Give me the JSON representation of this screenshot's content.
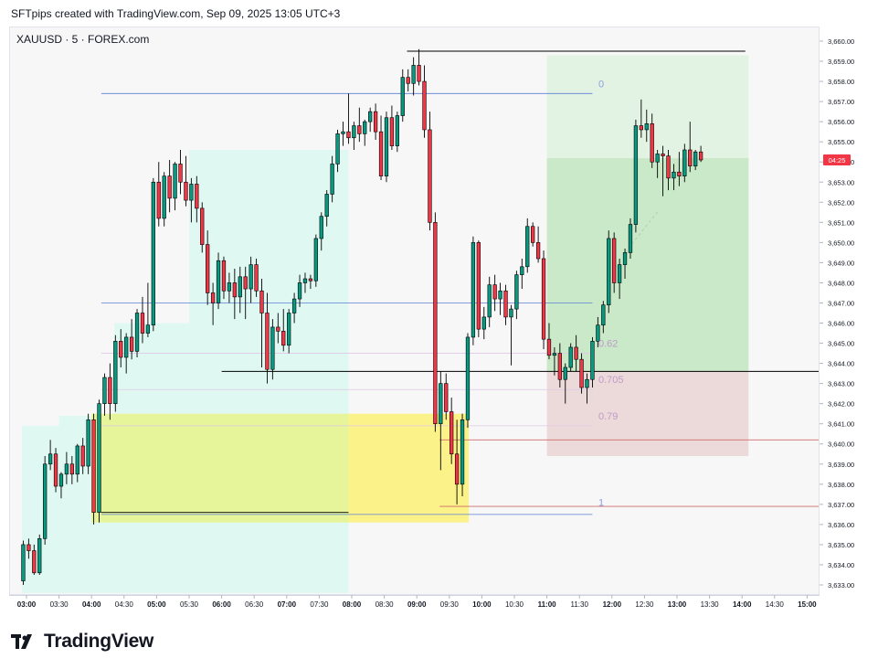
{
  "header": {
    "note": "SFTpips created with TradingView.com, Sep 09, 2025 13:05 UTC+3"
  },
  "chart_header": {
    "symbol": "XAUUSD · 5 · FOREX.com"
  },
  "brand": {
    "name": "TradingView",
    "logo_icon": "tradingview-logo-icon"
  },
  "colors": {
    "up": "#089981",
    "down": "#f23645",
    "zone_cyan": "#dff8f2",
    "zone_yellow": "#fbf28a",
    "zone_green": "#c9e9c9",
    "zone_green_light": "#e3f3e3",
    "zone_red": "#ecdada",
    "fib_blue": "#5b7fd6",
    "fib_label": "#8c9fe0",
    "fib_purple_label": "#c09bc9",
    "level_red": "#d26b6b",
    "black": "#000000",
    "price_tag": "#f23645"
  },
  "chart_data": {
    "type": "candlestick",
    "title": "",
    "xlabel": "",
    "ylabel": "",
    "ylim": [
      3632.6,
      3660.4
    ],
    "xlim_hours": [
      2.9,
      15.2
    ],
    "y_ticks": [
      "3,633.00",
      "3,634.00",
      "3,635.00",
      "3,636.00",
      "3,637.00",
      "3,638.00",
      "3,639.00",
      "3,640.00",
      "3,641.00",
      "3,642.00",
      "3,643.00",
      "3,644.00",
      "3,645.00",
      "3,646.00",
      "3,647.00",
      "3,648.00",
      "3,649.00",
      "3,650.00",
      "3,651.00",
      "3,652.00",
      "3,653.00",
      "3,654.00",
      "3,655.00",
      "3,656.00",
      "3,657.00",
      "3,658.00",
      "3,659.00",
      "3,660.00"
    ],
    "x_ticks": [
      {
        "label": "03:00",
        "h": 3.0,
        "bold": true
      },
      {
        "label": "03:30",
        "h": 3.5,
        "bold": false
      },
      {
        "label": "04:00",
        "h": 4.0,
        "bold": true
      },
      {
        "label": "04:30",
        "h": 4.5,
        "bold": false
      },
      {
        "label": "05:00",
        "h": 5.0,
        "bold": true
      },
      {
        "label": "05:30",
        "h": 5.5,
        "bold": false
      },
      {
        "label": "06:00",
        "h": 6.0,
        "bold": true
      },
      {
        "label": "06:30",
        "h": 6.5,
        "bold": false
      },
      {
        "label": "07:00",
        "h": 7.0,
        "bold": true
      },
      {
        "label": "07:30",
        "h": 7.5,
        "bold": false
      },
      {
        "label": "08:00",
        "h": 8.0,
        "bold": true
      },
      {
        "label": "08:30",
        "h": 8.5,
        "bold": false
      },
      {
        "label": "09:00",
        "h": 9.0,
        "bold": true
      },
      {
        "label": "09:30",
        "h": 9.5,
        "bold": false
      },
      {
        "label": "10:00",
        "h": 10.0,
        "bold": true
      },
      {
        "label": "10:30",
        "h": 10.5,
        "bold": false
      },
      {
        "label": "11:00",
        "h": 11.0,
        "bold": true
      },
      {
        "label": "11:30",
        "h": 11.5,
        "bold": false
      },
      {
        "label": "12:00",
        "h": 12.0,
        "bold": true
      },
      {
        "label": "12:30",
        "h": 12.5,
        "bold": false
      },
      {
        "label": "13:00",
        "h": 13.0,
        "bold": true
      },
      {
        "label": "13:30",
        "h": 13.5,
        "bold": false
      },
      {
        "label": "14:00",
        "h": 14.0,
        "bold": true
      },
      {
        "label": "14:30",
        "h": 14.5,
        "bold": false
      },
      {
        "label": "15:00",
        "h": 15.0,
        "bold": true
      }
    ],
    "current_price": {
      "label": "04:25",
      "price": 3654.1
    },
    "zones": [
      {
        "name": "cyan-zone-left",
        "x0": 2.93,
        "x1": 3.5,
        "y0": 3632.6,
        "y1": 3640.9,
        "color": "#dff8f2"
      },
      {
        "name": "cyan-zone-mid",
        "x0": 3.5,
        "x1": 4.35,
        "y0": 3632.6,
        "y1": 3641.4,
        "color": "#dff8f2"
      },
      {
        "name": "cyan-zone-upper",
        "x0": 4.35,
        "x1": 5.5,
        "y0": 3632.6,
        "y1": 3646.0,
        "color": "#dff8f2"
      },
      {
        "name": "cyan-zone-top",
        "x0": 5.5,
        "x1": 7.95,
        "y0": 3632.6,
        "y1": 3654.6,
        "color": "#dff8f2"
      },
      {
        "name": "yellow-zone-left",
        "x0": 4.0,
        "x1": 7.95,
        "y0": 3636.1,
        "y1": 3641.5,
        "color": "#e6f49a"
      },
      {
        "name": "yellow-zone-right",
        "x0": 7.95,
        "x1": 9.8,
        "y0": 3636.1,
        "y1": 3641.5,
        "color": "#fbf28a"
      },
      {
        "name": "green-target-zone",
        "x0": 11.0,
        "x1": 14.1,
        "y0": 3643.6,
        "y1": 3654.2,
        "color": "#c9e9c9"
      },
      {
        "name": "green-target-zone-upper",
        "x0": 11.0,
        "x1": 14.1,
        "y0": 3654.2,
        "y1": 3659.3,
        "color": "#e3f3e3"
      },
      {
        "name": "red-stop-zone",
        "x0": 11.0,
        "x1": 14.1,
        "y0": 3639.4,
        "y1": 3643.6,
        "color": "#ecdada"
      }
    ],
    "lines": [
      {
        "name": "fib-0-line",
        "x0": 4.15,
        "x1": 11.7,
        "y": 3657.4,
        "color": "#5b7fd6",
        "width": 0.8
      },
      {
        "name": "fib-05-line",
        "x0": 4.15,
        "x1": 11.7,
        "y": 3647.0,
        "color": "#5b7fd6",
        "width": 0.8
      },
      {
        "name": "fib-062-line",
        "x0": 4.15,
        "x1": 11.7,
        "y": 3644.5,
        "color": "#e0c8e6",
        "width": 0.8
      },
      {
        "name": "fib-0705-line",
        "x0": 4.15,
        "x1": 11.7,
        "y": 3642.7,
        "color": "#e0c8e6",
        "width": 0.8
      },
      {
        "name": "fib-079-line",
        "x0": 4.15,
        "x1": 11.7,
        "y": 3640.9,
        "color": "#e0c8e6",
        "width": 0.8
      },
      {
        "name": "fib-1-line",
        "x0": 4.15,
        "x1": 11.7,
        "y": 3636.5,
        "color": "#5b7fd6",
        "width": 0.8
      },
      {
        "name": "swing-high-line",
        "x0": 8.85,
        "x1": 14.05,
        "y": 3659.5,
        "color": "#000000",
        "width": 1
      },
      {
        "name": "support-line",
        "x0": 6.0,
        "x1": 15.2,
        "y": 3643.6,
        "color": "#000000",
        "width": 1
      },
      {
        "name": "red-level-upper",
        "x0": 9.35,
        "x1": 15.2,
        "y": 3640.2,
        "color": "#d26b6b",
        "width": 0.8
      },
      {
        "name": "red-level-lower",
        "x0": 9.35,
        "x1": 15.2,
        "y": 3636.9,
        "color": "#d26b6b",
        "width": 0.8
      },
      {
        "name": "lower-black-line",
        "x0": 4.15,
        "x1": 7.95,
        "y": 3636.6,
        "color": "#000000",
        "width": 0.8
      }
    ],
    "fib_labels": [
      {
        "text": "0",
        "y": 3657.9,
        "color": "#8c9fe0"
      },
      {
        "text": "0.62",
        "y": 3645.0,
        "color": "#c09bc9"
      },
      {
        "text": "0.705",
        "y": 3643.2,
        "color": "#c09bc9"
      },
      {
        "text": "0.79",
        "y": 3641.4,
        "color": "#c09bc9"
      },
      {
        "text": "1",
        "y": 3637.1,
        "color": "#8c9fe0"
      }
    ],
    "projection": {
      "x0": 12.2,
      "y0": 3649.5,
      "x1": 12.72,
      "y1": 3651.6
    },
    "candles": {
      "start_hour": 2.95,
      "step_hours": 0.0833333,
      "ohlc": [
        [
          3633.2,
          3635.2,
          3633.0,
          3635.0
        ],
        [
          3635.0,
          3635.3,
          3634.3,
          3634.7
        ],
        [
          3634.7,
          3635.0,
          3633.5,
          3633.6
        ],
        [
          3633.6,
          3635.5,
          3633.5,
          3635.3
        ],
        [
          3635.3,
          3639.4,
          3635.0,
          3639.0
        ],
        [
          3639.0,
          3640.2,
          3638.7,
          3639.5
        ],
        [
          3639.5,
          3639.8,
          3637.6,
          3637.9
        ],
        [
          3637.9,
          3638.6,
          3637.3,
          3638.5
        ],
        [
          3638.5,
          3639.6,
          3638.0,
          3639.0
        ],
        [
          3639.0,
          3639.4,
          3638.0,
          3638.5
        ],
        [
          3638.5,
          3640.0,
          3638.1,
          3639.9
        ],
        [
          3639.9,
          3640.3,
          3638.5,
          3638.9
        ],
        [
          3638.9,
          3641.5,
          3638.5,
          3641.2
        ],
        [
          3641.2,
          3641.5,
          3636.0,
          3636.6
        ],
        [
          3636.6,
          3642.2,
          3636.1,
          3642.0
        ],
        [
          3642.0,
          3643.5,
          3641.4,
          3643.3
        ],
        [
          3643.3,
          3644.0,
          3641.2,
          3642.0
        ],
        [
          3642.0,
          3645.4,
          3641.6,
          3645.1
        ],
        [
          3645.1,
          3645.7,
          3643.8,
          3644.3
        ],
        [
          3644.3,
          3645.5,
          3643.5,
          3645.3
        ],
        [
          3645.3,
          3646.2,
          3644.2,
          3644.6
        ],
        [
          3644.6,
          3646.7,
          3644.3,
          3646.5
        ],
        [
          3646.5,
          3647.3,
          3645.0,
          3645.5
        ],
        [
          3645.5,
          3648.0,
          3645.3,
          3645.9
        ],
        [
          3645.9,
          3653.2,
          3645.6,
          3653.0
        ],
        [
          3653.0,
          3654.0,
          3650.8,
          3651.2
        ],
        [
          3651.2,
          3653.5,
          3650.8,
          3653.3
        ],
        [
          3653.3,
          3654.1,
          3651.5,
          3652.2
        ],
        [
          3652.2,
          3654.0,
          3651.6,
          3653.9
        ],
        [
          3653.9,
          3654.6,
          3652.4,
          3653.0
        ],
        [
          3653.0,
          3654.3,
          3651.8,
          3652.1
        ],
        [
          3652.1,
          3653.2,
          3651.0,
          3652.9
        ],
        [
          3652.9,
          3653.3,
          3651.0,
          3651.7
        ],
        [
          3651.7,
          3652.0,
          3649.5,
          3649.9
        ],
        [
          3649.9,
          3650.6,
          3646.9,
          3647.5
        ],
        [
          3647.5,
          3648.0,
          3645.9,
          3647.0
        ],
        [
          3647.0,
          3649.5,
          3646.7,
          3649.1
        ],
        [
          3649.1,
          3649.3,
          3647.2,
          3647.6
        ],
        [
          3647.6,
          3648.5,
          3647.0,
          3648.0
        ],
        [
          3648.0,
          3648.7,
          3646.2,
          3647.3
        ],
        [
          3647.3,
          3648.8,
          3646.5,
          3648.3
        ],
        [
          3648.3,
          3648.8,
          3646.2,
          3647.7
        ],
        [
          3647.7,
          3649.3,
          3647.0,
          3648.9
        ],
        [
          3648.9,
          3649.2,
          3647.3,
          3647.6
        ],
        [
          3647.6,
          3648.2,
          3643.8,
          3646.5
        ],
        [
          3646.5,
          3647.5,
          3643.0,
          3643.7
        ],
        [
          3643.7,
          3646.2,
          3643.2,
          3645.8
        ],
        [
          3645.8,
          3646.5,
          3645.0,
          3645.6
        ],
        [
          3645.6,
          3646.7,
          3644.6,
          3644.9
        ],
        [
          3644.9,
          3646.7,
          3644.5,
          3646.5
        ],
        [
          3646.5,
          3647.5,
          3646.0,
          3647.2
        ],
        [
          3647.2,
          3648.4,
          3646.8,
          3648.0
        ],
        [
          3648.0,
          3648.5,
          3647.5,
          3648.2
        ],
        [
          3648.2,
          3648.4,
          3647.7,
          3648.1
        ],
        [
          3648.1,
          3650.4,
          3647.8,
          3650.2
        ],
        [
          3650.2,
          3651.5,
          3649.6,
          3651.3
        ],
        [
          3651.3,
          3652.6,
          3650.8,
          3652.4
        ],
        [
          3652.4,
          3654.3,
          3652.0,
          3653.9
        ],
        [
          3653.9,
          3655.6,
          3653.5,
          3655.4
        ],
        [
          3655.4,
          3656.0,
          3654.8,
          3655.5
        ],
        [
          3655.5,
          3657.4,
          3654.9,
          3655.2
        ],
        [
          3655.2,
          3656.0,
          3654.6,
          3655.8
        ],
        [
          3655.8,
          3656.7,
          3655.0,
          3655.4
        ],
        [
          3655.4,
          3656.1,
          3654.8,
          3656.0
        ],
        [
          3656.0,
          3656.7,
          3655.5,
          3656.5
        ],
        [
          3656.5,
          3656.9,
          3655.1,
          3655.5
        ],
        [
          3655.5,
          3656.3,
          3653.1,
          3653.3
        ],
        [
          3653.3,
          3656.5,
          3653.0,
          3656.2
        ],
        [
          3656.2,
          3656.8,
          3654.6,
          3654.8
        ],
        [
          3654.8,
          3656.5,
          3654.5,
          3656.3
        ],
        [
          3656.3,
          3658.6,
          3656.0,
          3658.2
        ],
        [
          3658.2,
          3658.6,
          3657.5,
          3657.9
        ],
        [
          3657.9,
          3659.2,
          3657.3,
          3658.8
        ],
        [
          3658.8,
          3659.6,
          3657.8,
          3658.0
        ],
        [
          3658.0,
          3658.8,
          3655.2,
          3655.6
        ],
        [
          3655.6,
          3656.5,
          3650.6,
          3651.0
        ],
        [
          3651.0,
          3651.5,
          3640.6,
          3641.0
        ],
        [
          3641.0,
          3643.6,
          3638.7,
          3643.0
        ],
        [
          3643.0,
          3643.5,
          3641.2,
          3641.6
        ],
        [
          3641.6,
          3642.3,
          3639.0,
          3639.5
        ],
        [
          3639.5,
          3641.2,
          3637.0,
          3638.0
        ],
        [
          3638.0,
          3641.5,
          3637.4,
          3641.2
        ],
        [
          3641.2,
          3645.5,
          3640.8,
          3645.3
        ],
        [
          3645.3,
          3650.3,
          3644.9,
          3650.0
        ],
        [
          3650.0,
          3650.1,
          3645.3,
          3645.7
        ],
        [
          3645.7,
          3646.8,
          3645.2,
          3646.3
        ],
        [
          3646.3,
          3648.3,
          3645.8,
          3647.9
        ],
        [
          3647.9,
          3648.4,
          3646.6,
          3647.2
        ],
        [
          3647.2,
          3648.0,
          3646.4,
          3647.6
        ],
        [
          3647.6,
          3647.9,
          3645.9,
          3646.3
        ],
        [
          3646.3,
          3646.9,
          3643.9,
          3646.7
        ],
        [
          3646.7,
          3648.6,
          3646.2,
          3648.4
        ],
        [
          3648.4,
          3649.2,
          3647.7,
          3648.8
        ],
        [
          3648.8,
          3651.2,
          3648.5,
          3650.8
        ],
        [
          3650.8,
          3651.0,
          3649.8,
          3650.0
        ],
        [
          3650.0,
          3650.8,
          3649.0,
          3649.2
        ],
        [
          3649.2,
          3649.6,
          3644.7,
          3645.2
        ],
        [
          3645.2,
          3646.0,
          3644.2,
          3644.4
        ],
        [
          3644.4,
          3644.8,
          3643.4,
          3644.5
        ],
        [
          3644.5,
          3645.0,
          3642.8,
          3643.2
        ],
        [
          3643.2,
          3644.0,
          3642.0,
          3643.8
        ],
        [
          3643.8,
          3645.0,
          3643.6,
          3644.8
        ],
        [
          3644.8,
          3645.4,
          3643.6,
          3644.2
        ],
        [
          3644.2,
          3644.5,
          3642.5,
          3642.8
        ],
        [
          3642.8,
          3643.5,
          3642.0,
          3643.2
        ],
        [
          3643.2,
          3645.3,
          3642.8,
          3645.1
        ],
        [
          3645.1,
          3646.3,
          3644.8,
          3645.9
        ],
        [
          3645.9,
          3647.1,
          3645.5,
          3646.9
        ],
        [
          3646.9,
          3650.6,
          3646.5,
          3650.2
        ],
        [
          3650.2,
          3650.5,
          3647.5,
          3648.0
        ],
        [
          3648.0,
          3649.2,
          3647.2,
          3648.9
        ],
        [
          3648.9,
          3649.7,
          3648.2,
          3649.5
        ],
        [
          3649.5,
          3651.2,
          3649.2,
          3650.9
        ],
        [
          3650.9,
          3656.1,
          3650.5,
          3655.8
        ],
        [
          3655.8,
          3657.1,
          3655.2,
          3655.6
        ],
        [
          3655.6,
          3656.6,
          3655.0,
          3655.9
        ],
        [
          3655.9,
          3656.4,
          3653.7,
          3654.0
        ],
        [
          3654.0,
          3654.6,
          3653.2,
          3654.4
        ],
        [
          3654.4,
          3654.8,
          3652.3,
          3654.3
        ],
        [
          3654.3,
          3654.6,
          3652.6,
          3653.2
        ],
        [
          3653.2,
          3653.9,
          3652.6,
          3653.5
        ],
        [
          3653.5,
          3654.5,
          3652.8,
          3653.3
        ],
        [
          3653.3,
          3654.9,
          3653.0,
          3654.6
        ],
        [
          3654.6,
          3656.0,
          3653.5,
          3653.8
        ],
        [
          3653.8,
          3654.6,
          3653.6,
          3654.5
        ],
        [
          3654.5,
          3654.8,
          3654.0,
          3654.1
        ]
      ]
    }
  }
}
